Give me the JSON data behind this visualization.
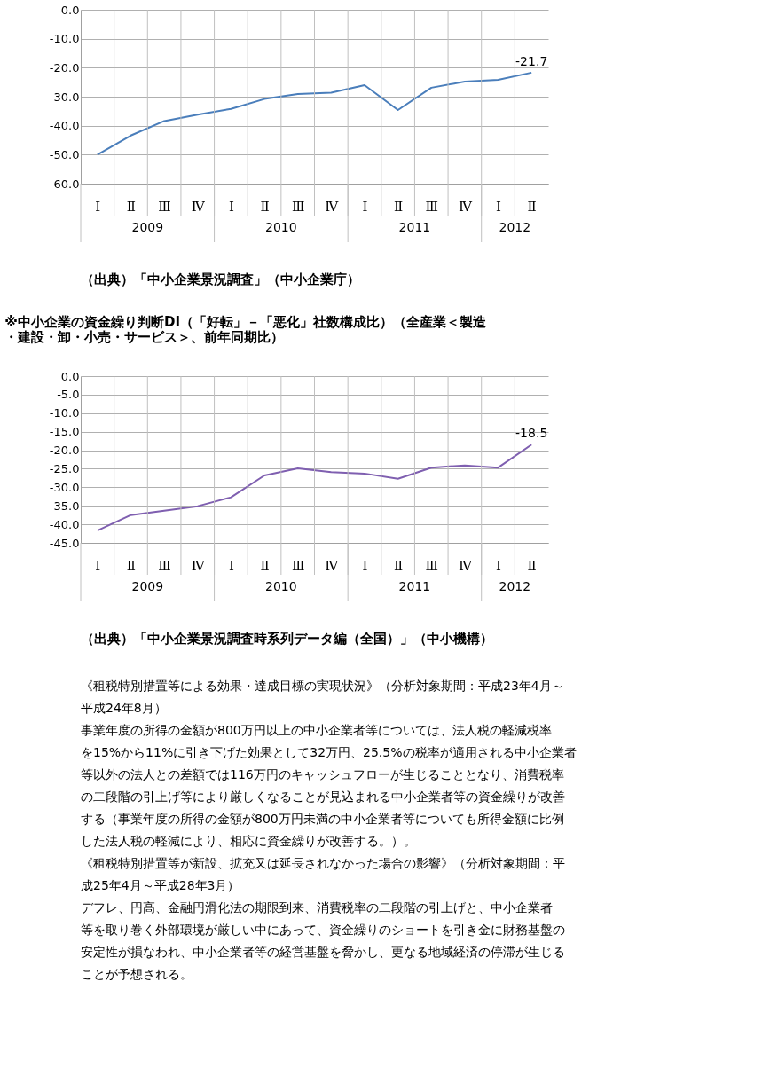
{
  "chart_data": [
    {
      "type": "line",
      "categories": [
        "Ⅰ",
        "Ⅱ",
        "Ⅲ",
        "Ⅳ",
        "Ⅰ",
        "Ⅱ",
        "Ⅲ",
        "Ⅳ",
        "Ⅰ",
        "Ⅱ",
        "Ⅲ",
        "Ⅳ",
        "Ⅰ",
        "Ⅱ"
      ],
      "series": [
        {
          "color": "#4a7ebb",
          "values": [
            -50.0,
            -43.4,
            -38.4,
            -36.2,
            -34.2,
            -30.8,
            -29.1,
            -28.6,
            -26.0,
            -34.6,
            -26.9,
            -24.8,
            -24.2,
            -21.7
          ],
          "value_labels": [
            null,
            null,
            null,
            null,
            null,
            null,
            null,
            null,
            null,
            null,
            null,
            null,
            null,
            "-21.7"
          ]
        }
      ],
      "ylim": [
        -60,
        0
      ],
      "yticks": [
        {
          "value": 0,
          "label": "0.0"
        },
        {
          "value": -10,
          "label": "-10.0"
        },
        {
          "value": -20,
          "label": "-20.0"
        },
        {
          "value": -30,
          "label": "-30.0"
        },
        {
          "value": -40,
          "label": "-40.0"
        },
        {
          "value": -50,
          "label": "-50.0"
        },
        {
          "value": -60,
          "label": "-60.0"
        }
      ],
      "grid": "y",
      "legend": false,
      "marker": "none",
      "line_style": "solid",
      "annotations": [
        "2009",
        "2010",
        "2011",
        "2012",
        "（出典）「中小企業景況調査」（中小企業庁）"
      ]
    },
    {
      "type": "line",
      "title": "※中小企業の資金繰り判断DI（「好転」－「悪化」社数構成比）（全産業＜製造・建設・卸・小売・サービス＞、前年同期比）",
      "categories": [
        "Ⅰ",
        "Ⅱ",
        "Ⅲ",
        "Ⅳ",
        "Ⅰ",
        "Ⅱ",
        "Ⅲ",
        "Ⅳ",
        "Ⅰ",
        "Ⅱ",
        "Ⅲ",
        "Ⅳ",
        "Ⅰ",
        "Ⅱ"
      ],
      "series": [
        {
          "color": "#7f5fb0",
          "values": [
            -41.7,
            -37.5,
            -36.3,
            -35.1,
            -32.7,
            -26.8,
            -24.9,
            -25.9,
            -26.3,
            -27.7,
            -24.7,
            -24.1,
            -24.7,
            -18.5
          ],
          "value_labels": [
            null,
            null,
            null,
            null,
            null,
            null,
            null,
            null,
            null,
            null,
            null,
            null,
            null,
            "-18.5"
          ]
        }
      ],
      "ylim": [
        -45,
        0
      ],
      "yticks": [
        {
          "value": 0,
          "label": "0.0"
        },
        {
          "value": -5,
          "label": "-5.0"
        },
        {
          "value": -10,
          "label": "-10.0"
        },
        {
          "value": -15,
          "label": "-15.0"
        },
        {
          "value": -20,
          "label": "-20.0"
        },
        {
          "value": -25,
          "label": "-25.0"
        },
        {
          "value": -30,
          "label": "-30.0"
        },
        {
          "value": -35,
          "label": "-35.0"
        },
        {
          "value": -40,
          "label": "-40.0"
        },
        {
          "value": -45,
          "label": "-45.0"
        }
      ],
      "grid": "y",
      "legend": false,
      "marker": "none",
      "line_style": "solid",
      "annotations": [
        "2009",
        "2010",
        "2011",
        "2012",
        "（出典）「中小企業景況調査時系列データ編（全国）」（中小機構）",
        "《租税特別措置等による効果・達成目標の実現状況》（分析対象期間：平成23年4月～平成24年8月）",
        "　事業年度の所得の金額が800万円以上の中小企業者等については、法人税の軽減税率を15%から11%に引き下げた効果として32万円、25.5%の税率が適用される中小企業者等以外の法人との差額では116万円のキャッシュフローが生じることとなり、消費税率の二段階の引上げ等により厳しくなることが見込まれる中小企業者等の資金繰りが改善する（事業年度の所得の金額が800万円未満の中小企業者等についても所得金額に比例した法人税の軽減により、相応に資金繰りが改善する。）。",
        "《租税特別措置等が新設、拡充又は延長されなかった場合の影響》（分析対象期間：平成25年4月～平成28年3月）",
        "　デフレ、円高、金融円滑化法の期限到来、消費税率の二段階の引上げと、中小企業者等を取り巻く外部環境が厳しい中にあって、資金繰りのショートを引き金に財務基盤の安定性が損なわれ、中小企業者等の経営基盤を脅かし、更なる地域経済の停滞が生じることが予想される。"
      ]
    }
  ]
}
